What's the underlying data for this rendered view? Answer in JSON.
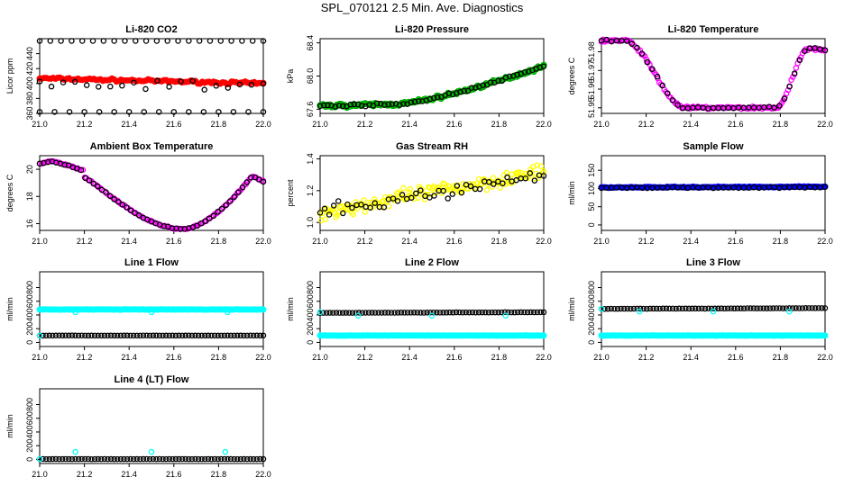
{
  "page": {
    "title": "SPL_070121  2.5 Min. Ave. Diagnostics"
  },
  "colors": {
    "red": "#ff0000",
    "green": "#00cc00",
    "magenta": "#ff00ff",
    "yellow": "#ffff00",
    "blue": "#0000ff",
    "cyan": "#00ffff",
    "black": "#000000"
  },
  "chart_data": [
    {
      "type": "scatter",
      "title": "Li-820 CO2",
      "ylabel": "Licor ppm",
      "xlim": [
        21.0,
        22.0
      ],
      "ylim": [
        360,
        460
      ],
      "x_ticks": [
        "21.0",
        "21.2",
        "21.4",
        "21.6",
        "21.8",
        "22.0"
      ],
      "y_ticks": [
        {
          "v": 360,
          "t": "360"
        },
        {
          "v": 380,
          "t": "380"
        },
        {
          "v": 400,
          "t": "400"
        },
        {
          "v": 420,
          "t": "420"
        },
        {
          "v": 440,
          "t": "440"
        }
      ],
      "series": [
        {
          "name": "co2-avg",
          "color": "red",
          "style": "thick",
          "n": 100,
          "start": 407,
          "end": 400,
          "noise": 2.5
        },
        {
          "name": "co2-black-top",
          "color": "black",
          "style": "open",
          "n": 22,
          "start": 457,
          "end": 457,
          "noise": 0
        },
        {
          "name": "co2-black-bottom",
          "color": "black",
          "style": "open",
          "n": 16,
          "start": 362,
          "end": 362,
          "noise": 0
        },
        {
          "name": "co2-black-mid",
          "color": "black",
          "style": "open",
          "n": 20,
          "start": 400,
          "end": 397,
          "noise": 12
        }
      ]
    },
    {
      "type": "scatter",
      "title": "Li-820 Pressure",
      "ylabel": "kPa",
      "xlim": [
        21.0,
        22.0
      ],
      "ylim": [
        67.55,
        68.45
      ],
      "x_ticks": [
        "21.0",
        "21.2",
        "21.4",
        "21.6",
        "21.8",
        "22.0"
      ],
      "y_ticks": [
        {
          "v": 67.6,
          "t": "67.6"
        },
        {
          "v": 68.0,
          "t": "68.0"
        },
        {
          "v": 68.4,
          "t": "68.4"
        }
      ],
      "series": [
        {
          "name": "pressure-green",
          "color": "green",
          "style": "band",
          "n": 160,
          "shape": "pressure",
          "noise": 0.035
        },
        {
          "name": "pressure-black",
          "color": "black",
          "style": "open",
          "n": 60,
          "shape": "pressure",
          "noise": 0.02
        }
      ]
    },
    {
      "type": "scatter",
      "title": "Li-820 Temperature",
      "ylabel": "degrees C",
      "xlim": [
        21.0,
        22.0
      ],
      "ylim": [
        51.947,
        51.987
      ],
      "x_ticks": [
        "21.0",
        "21.2",
        "21.4",
        "21.6",
        "21.8",
        "22.0"
      ],
      "y_ticks": [
        {
          "v": 51.95,
          "t": "51.95"
        },
        {
          "v": 51.96,
          "t": "51.96"
        },
        {
          "v": 51.97,
          "t": "51.97"
        },
        {
          "v": 51.98,
          "t": "51.98"
        }
      ],
      "series": [
        {
          "name": "licor-temp-magenta",
          "color": "magenta",
          "style": "open",
          "n": 140,
          "shape": "licortemp",
          "noise": 0.0012
        },
        {
          "name": "licor-temp-black",
          "color": "black",
          "style": "open",
          "n": 45,
          "shape": "licortemp",
          "noise": 0.0008
        }
      ]
    },
    {
      "type": "scatter",
      "title": "Ambient Box Temperature",
      "ylabel": "degrees C",
      "xlim": [
        21.0,
        22.0
      ],
      "ylim": [
        15.5,
        21.0
      ],
      "x_ticks": [
        "21.0",
        "21.2",
        "21.4",
        "21.6",
        "21.8",
        "22.0"
      ],
      "y_ticks": [
        {
          "v": 16,
          "t": "16"
        },
        {
          "v": 18,
          "t": "18"
        },
        {
          "v": 20,
          "t": "20"
        }
      ],
      "series": [
        {
          "name": "box-temp-magenta",
          "color": "magenta",
          "style": "open",
          "n": 130,
          "shape": "boxtemp",
          "noise": 0.08
        },
        {
          "name": "box-temp-black",
          "color": "black",
          "style": "open",
          "n": 55,
          "shape": "boxtemp",
          "noise": 0.05
        }
      ]
    },
    {
      "type": "scatter",
      "title": "Gas Stream RH",
      "ylabel": "percent",
      "xlim": [
        21.0,
        22.0
      ],
      "ylim": [
        0.95,
        1.42
      ],
      "x_ticks": [
        "21.0",
        "21.2",
        "21.4",
        "21.6",
        "21.8",
        "22.0"
      ],
      "y_ticks": [
        {
          "v": 1.0,
          "t": "1.0"
        },
        {
          "v": 1.2,
          "t": "1.2"
        },
        {
          "v": 1.4,
          "t": "1.4"
        }
      ],
      "series": [
        {
          "name": "rh-yellow",
          "color": "yellow",
          "style": "open",
          "n": 170,
          "start": 1.06,
          "end": 1.32,
          "noise": 0.07
        },
        {
          "name": "rh-black",
          "color": "black",
          "style": "open",
          "n": 50,
          "start": 1.06,
          "end": 1.3,
          "noise": 0.06
        }
      ]
    },
    {
      "type": "scatter",
      "title": "Sample Flow",
      "ylabel": "ml/min",
      "xlim": [
        21.0,
        22.0
      ],
      "ylim": [
        -15,
        190
      ],
      "x_ticks": [
        "21.0",
        "21.2",
        "21.4",
        "21.6",
        "21.8",
        "22.0"
      ],
      "y_ticks": [
        {
          "v": 0,
          "t": "0"
        },
        {
          "v": 50,
          "t": "50"
        },
        {
          "v": 100,
          "t": "100"
        },
        {
          "v": 150,
          "t": "150"
        }
      ],
      "series": [
        {
          "name": "sample-flow-blue",
          "color": "blue",
          "style": "thick",
          "n": 120,
          "start": 103,
          "end": 105,
          "noise": 2
        },
        {
          "name": "sample-flow-black",
          "color": "black",
          "style": "open",
          "n": 45,
          "start": 102,
          "end": 103,
          "noise": 2
        }
      ]
    },
    {
      "type": "scatter",
      "title": "Line 1 Flow",
      "ylabel": "ml/min",
      "xlim": [
        21.0,
        22.0
      ],
      "ylim": [
        -60,
        1030
      ],
      "x_ticks": [
        "21.0",
        "21.2",
        "21.4",
        "21.6",
        "21.8",
        "22.0"
      ],
      "y_ticks": [
        {
          "v": 0,
          "t": "0"
        },
        {
          "v": 200,
          "t": "200"
        },
        {
          "v": 400,
          "t": "400"
        },
        {
          "v": 600,
          "t": "600"
        },
        {
          "v": 800,
          "t": "800"
        }
      ],
      "series": [
        {
          "name": "line1-cyan",
          "color": "cyan",
          "style": "thick",
          "n": 110,
          "start": 480,
          "end": 480,
          "noise": 4
        },
        {
          "name": "line1-black",
          "color": "black",
          "style": "open",
          "n": 70,
          "start": 100,
          "end": 100,
          "noise": 2
        },
        {
          "name": "line1-cyan-dips",
          "color": "cyan",
          "style": "open",
          "pts": [
            [
              21.0,
              100
            ],
            [
              21.16,
              440
            ],
            [
              21.5,
              440
            ],
            [
              21.84,
              440
            ]
          ]
        }
      ]
    },
    {
      "type": "scatter",
      "title": "Line 2 Flow",
      "ylabel": "ml/min",
      "xlim": [
        21.0,
        22.0
      ],
      "ylim": [
        -60,
        1030
      ],
      "x_ticks": [
        "21.0",
        "21.2",
        "21.4",
        "21.6",
        "21.8",
        "22.0"
      ],
      "y_ticks": [
        {
          "v": 0,
          "t": "0"
        },
        {
          "v": 200,
          "t": "200"
        },
        {
          "v": 400,
          "t": "400"
        },
        {
          "v": 600,
          "t": "600"
        },
        {
          "v": 800,
          "t": "800"
        }
      ],
      "series": [
        {
          "name": "line2-cyan",
          "color": "cyan",
          "style": "thick",
          "n": 110,
          "start": 100,
          "end": 100,
          "noise": 3
        },
        {
          "name": "line2-black",
          "color": "black",
          "style": "open",
          "n": 70,
          "start": 430,
          "end": 440,
          "noise": 3
        },
        {
          "name": "line2-cyan-dips",
          "color": "cyan",
          "style": "open",
          "pts": [
            [
              21.0,
              440
            ],
            [
              21.17,
              390
            ],
            [
              21.5,
              390
            ],
            [
              21.83,
              390
            ]
          ]
        }
      ]
    },
    {
      "type": "scatter",
      "title": "Line 3 Flow",
      "ylabel": "ml/min",
      "xlim": [
        21.0,
        22.0
      ],
      "ylim": [
        -60,
        1030
      ],
      "x_ticks": [
        "21.0",
        "21.2",
        "21.4",
        "21.6",
        "21.8",
        "22.0"
      ],
      "y_ticks": [
        {
          "v": 0,
          "t": "0"
        },
        {
          "v": 200,
          "t": "200"
        },
        {
          "v": 400,
          "t": "400"
        },
        {
          "v": 600,
          "t": "600"
        },
        {
          "v": 800,
          "t": "800"
        }
      ],
      "series": [
        {
          "name": "line3-cyan",
          "color": "cyan",
          "style": "thick",
          "n": 110,
          "start": 100,
          "end": 100,
          "noise": 3
        },
        {
          "name": "line3-black",
          "color": "black",
          "style": "open",
          "n": 70,
          "start": 490,
          "end": 500,
          "noise": 3
        },
        {
          "name": "line3-cyan-dips",
          "color": "cyan",
          "style": "open",
          "pts": [
            [
              21.0,
              490
            ],
            [
              21.17,
              450
            ],
            [
              21.5,
              450
            ],
            [
              21.84,
              450
            ]
          ]
        }
      ]
    },
    {
      "type": "scatter",
      "title": "Line 4 (LT) Flow",
      "ylabel": "ml/min",
      "xlim": [
        21.0,
        22.0
      ],
      "ylim": [
        -60,
        1030
      ],
      "x_ticks": [
        "21.0",
        "21.2",
        "21.4",
        "21.6",
        "21.8",
        "22.0"
      ],
      "y_ticks": [
        {
          "v": 0,
          "t": "0"
        },
        {
          "v": 200,
          "t": "200"
        },
        {
          "v": 400,
          "t": "400"
        },
        {
          "v": 600,
          "t": "600"
        },
        {
          "v": 800,
          "t": "800"
        }
      ],
      "series": [
        {
          "name": "line4-black",
          "color": "black",
          "style": "open",
          "n": 70,
          "start": 5,
          "end": 5,
          "noise": 2
        },
        {
          "name": "line4-cyan",
          "color": "cyan",
          "style": "open",
          "pts": [
            [
              21.0,
              5
            ],
            [
              21.16,
              110
            ],
            [
              21.5,
              110
            ],
            [
              21.83,
              110
            ]
          ]
        }
      ]
    }
  ]
}
